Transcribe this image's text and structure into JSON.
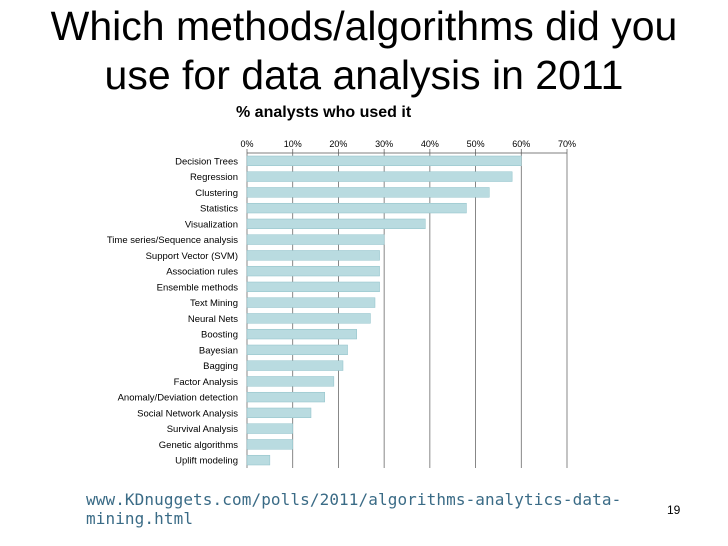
{
  "slide": {
    "title_line1": "Which methods/algorithms did you",
    "title_line2": "use for data analysis in 2011",
    "source_url": "www.KDnuggets.com/polls/2011/algorithms-analytics-data-mining.html",
    "page_number": "19"
  },
  "chart_data": {
    "type": "bar",
    "orientation": "horizontal",
    "title": "% analysts who used it",
    "categories": [
      "Decision Trees",
      "Regression",
      "Clustering",
      "Statistics",
      "Visualization",
      "Time series/Sequence analysis",
      "Support Vector (SVM)",
      "Association rules",
      "Ensemble methods",
      "Text Mining",
      "Neural Nets",
      "Boosting",
      "Bayesian",
      "Bagging",
      "Factor Analysis",
      "Anomaly/Deviation detection",
      "Social Network Analysis",
      "Survival Analysis",
      "Genetic algorithms",
      "Uplift modeling"
    ],
    "values": [
      60,
      58,
      53,
      48,
      39,
      30,
      29,
      29,
      29,
      28,
      27,
      24,
      22,
      21,
      19,
      17,
      14,
      10,
      10,
      5
    ],
    "xlim": [
      0,
      70
    ],
    "ticks": [
      0,
      10,
      20,
      30,
      40,
      50,
      60,
      70
    ],
    "tick_labels": [
      "0%",
      "10%",
      "20%",
      "30%",
      "40%",
      "50%",
      "60%",
      "70%"
    ],
    "grid": true,
    "axis_position": "top",
    "bar_color": "#b9dbe0",
    "bar_stroke": "#8fc1c9"
  }
}
